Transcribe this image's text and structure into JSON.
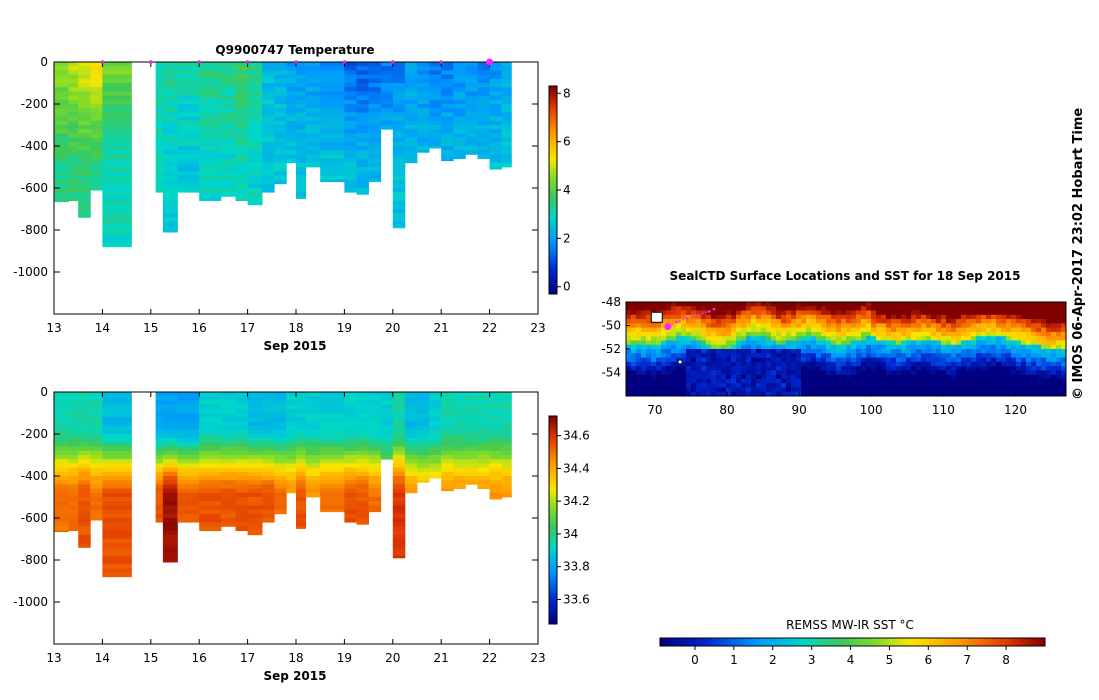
{
  "chart_data": [
    {
      "type": "heatmap",
      "title": "Q9900747  Temperature",
      "xlabel": "Sep 2015",
      "ylabel": "",
      "xlim": [
        13,
        23
      ],
      "ylim": [
        -1200,
        0
      ],
      "xticks": [
        "13",
        "14",
        "15",
        "16",
        "17",
        "18",
        "19",
        "20",
        "21",
        "22",
        "23"
      ],
      "yticks": [
        "0",
        "-200",
        "-400",
        "-600",
        "-800",
        "-1000"
      ],
      "yticks_values": [
        0,
        -200,
        -400,
        -600,
        -800,
        -1000
      ],
      "colorbar": {
        "ticks": [
          "0",
          "2",
          "4",
          "6",
          "8"
        ],
        "tick_values": [
          0,
          2,
          4,
          6,
          8
        ],
        "range": [
          -0.3,
          8.3
        ]
      },
      "surface_markers_day": [
        14,
        15,
        16,
        17,
        18,
        19,
        20,
        21,
        22
      ],
      "highlight_marker_day": 22,
      "profiles": [
        {
          "x0": 13.0,
          "x1": 13.3,
          "bottom": -665,
          "top_val": 4.6,
          "deep_val": 3.4
        },
        {
          "x0": 13.3,
          "x1": 13.5,
          "bottom": -660,
          "top_val": 5.0,
          "deep_val": 3.4
        },
        {
          "x0": 13.5,
          "x1": 13.75,
          "bottom": -740,
          "top_val": 5.2,
          "deep_val": 3.5
        },
        {
          "x0": 13.75,
          "x1": 14.0,
          "bottom": -610,
          "top_val": 5.4,
          "deep_val": 3.4
        },
        {
          "x0": 14.0,
          "x1": 14.6,
          "bottom": -880,
          "top_val": 4.4,
          "deep_val": 3.0
        },
        {
          "x0": 15.1,
          "x1": 15.25,
          "bottom": -620,
          "top_val": 3.2,
          "deep_val": 2.9
        },
        {
          "x0": 15.25,
          "x1": 15.55,
          "bottom": -810,
          "top_val": 3.3,
          "deep_val": 2.7
        },
        {
          "x0": 15.55,
          "x1": 16.0,
          "bottom": -620,
          "top_val": 3.1,
          "deep_val": 2.6
        },
        {
          "x0": 16.0,
          "x1": 16.45,
          "bottom": -660,
          "top_val": 3.4,
          "deep_val": 2.9
        },
        {
          "x0": 16.45,
          "x1": 16.75,
          "bottom": -640,
          "top_val": 3.3,
          "deep_val": 2.9
        },
        {
          "x0": 16.75,
          "x1": 17.0,
          "bottom": -660,
          "top_val": 3.7,
          "deep_val": 3.0
        },
        {
          "x0": 17.0,
          "x1": 17.3,
          "bottom": -680,
          "top_val": 3.4,
          "deep_val": 2.8
        },
        {
          "x0": 17.3,
          "x1": 17.55,
          "bottom": -620,
          "top_val": 2.4,
          "deep_val": 2.7
        },
        {
          "x0": 17.55,
          "x1": 17.8,
          "bottom": -580,
          "top_val": 2.2,
          "deep_val": 2.7
        },
        {
          "x0": 17.8,
          "x1": 18.0,
          "bottom": -480,
          "top_val": 2.0,
          "deep_val": 2.6
        },
        {
          "x0": 18.0,
          "x1": 18.2,
          "bottom": -650,
          "top_val": 2.0,
          "deep_val": 2.5
        },
        {
          "x0": 18.2,
          "x1": 18.5,
          "bottom": -500,
          "top_val": 1.9,
          "deep_val": 2.5
        },
        {
          "x0": 18.5,
          "x1": 19.0,
          "bottom": -570,
          "top_val": 1.7,
          "deep_val": 2.5
        },
        {
          "x0": 19.0,
          "x1": 19.25,
          "bottom": -620,
          "top_val": 1.3,
          "deep_val": 2.4
        },
        {
          "x0": 19.25,
          "x1": 19.5,
          "bottom": -630,
          "top_val": 1.2,
          "deep_val": 2.4
        },
        {
          "x0": 19.5,
          "x1": 19.75,
          "bottom": -570,
          "top_val": 1.3,
          "deep_val": 2.4
        },
        {
          "x0": 19.75,
          "x1": 20.0,
          "bottom": -320,
          "top_val": 1.5,
          "deep_val": 2.4
        },
        {
          "x0": 20.0,
          "x1": 20.25,
          "bottom": -790,
          "top_val": 1.6,
          "deep_val": 2.5
        },
        {
          "x0": 20.25,
          "x1": 20.5,
          "bottom": -480,
          "top_val": 1.9,
          "deep_val": 2.5
        },
        {
          "x0": 20.5,
          "x1": 20.75,
          "bottom": -430,
          "top_val": 1.7,
          "deep_val": 2.5
        },
        {
          "x0": 20.75,
          "x1": 21.0,
          "bottom": -410,
          "top_val": 1.5,
          "deep_val": 2.5
        },
        {
          "x0": 21.0,
          "x1": 21.25,
          "bottom": -470,
          "top_val": 1.6,
          "deep_val": 2.5
        },
        {
          "x0": 21.25,
          "x1": 21.5,
          "bottom": -460,
          "top_val": 1.7,
          "deep_val": 2.5
        },
        {
          "x0": 21.5,
          "x1": 21.75,
          "bottom": -440,
          "top_val": 1.8,
          "deep_val": 2.5
        },
        {
          "x0": 21.75,
          "x1": 22.0,
          "bottom": -460,
          "top_val": 1.6,
          "deep_val": 2.5
        },
        {
          "x0": 22.0,
          "x1": 22.25,
          "bottom": -510,
          "top_val": 1.9,
          "deep_val": 2.5
        },
        {
          "x0": 22.25,
          "x1": 22.45,
          "bottom": -500,
          "top_val": 2.1,
          "deep_val": 2.6
        }
      ]
    },
    {
      "type": "heatmap",
      "title": "",
      "xlabel": "Sep 2015",
      "ylabel": "",
      "xlim": [
        13,
        23
      ],
      "ylim": [
        -1200,
        0
      ],
      "xticks": [
        "13",
        "14",
        "15",
        "16",
        "17",
        "18",
        "19",
        "20",
        "21",
        "22",
        "23"
      ],
      "yticks": [
        "0",
        "-200",
        "-400",
        "-600",
        "-800",
        "-1000"
      ],
      "yticks_values": [
        0,
        -200,
        -400,
        -600,
        -800,
        -1000
      ],
      "colorbar": {
        "ticks": [
          "33.6",
          "33.8",
          "34",
          "34.2",
          "34.4",
          "34.6"
        ],
        "tick_values": [
          33.6,
          33.8,
          34.0,
          34.2,
          34.4,
          34.6
        ],
        "range": [
          33.45,
          34.72
        ]
      },
      "profiles": [
        {
          "x0": 13.0,
          "x1": 13.3,
          "bottom": -665,
          "surf": 33.95,
          "deep": 34.5
        },
        {
          "x0": 13.3,
          "x1": 13.5,
          "bottom": -660,
          "surf": 33.95,
          "deep": 34.5
        },
        {
          "x0": 13.5,
          "x1": 13.75,
          "bottom": -740,
          "surf": 33.95,
          "deep": 34.55
        },
        {
          "x0": 13.75,
          "x1": 14.0,
          "bottom": -610,
          "surf": 33.95,
          "deep": 34.5
        },
        {
          "x0": 14.0,
          "x1": 14.6,
          "bottom": -880,
          "surf": 33.85,
          "deep": 34.55
        },
        {
          "x0": 15.1,
          "x1": 15.25,
          "bottom": -620,
          "surf": 33.8,
          "deep": 34.55
        },
        {
          "x0": 15.25,
          "x1": 15.55,
          "bottom": -810,
          "surf": 33.8,
          "deep": 34.68
        },
        {
          "x0": 15.55,
          "x1": 16.0,
          "bottom": -620,
          "surf": 33.8,
          "deep": 34.55
        },
        {
          "x0": 16.0,
          "x1": 16.45,
          "bottom": -660,
          "surf": 33.9,
          "deep": 34.55
        },
        {
          "x0": 16.45,
          "x1": 16.75,
          "bottom": -640,
          "surf": 33.9,
          "deep": 34.55
        },
        {
          "x0": 16.75,
          "x1": 17.0,
          "bottom": -660,
          "surf": 33.9,
          "deep": 34.55
        },
        {
          "x0": 17.0,
          "x1": 17.3,
          "bottom": -680,
          "surf": 33.85,
          "deep": 34.55
        },
        {
          "x0": 17.3,
          "x1": 17.55,
          "bottom": -620,
          "surf": 33.85,
          "deep": 34.55
        },
        {
          "x0": 17.55,
          "x1": 17.8,
          "bottom": -580,
          "surf": 33.85,
          "deep": 34.5
        },
        {
          "x0": 17.8,
          "x1": 18.0,
          "bottom": -480,
          "surf": 33.9,
          "deep": 34.45
        },
        {
          "x0": 18.0,
          "x1": 18.2,
          "bottom": -650,
          "surf": 33.9,
          "deep": 34.55
        },
        {
          "x0": 18.2,
          "x1": 18.5,
          "bottom": -500,
          "surf": 33.9,
          "deep": 34.45
        },
        {
          "x0": 18.5,
          "x1": 19.0,
          "bottom": -570,
          "surf": 33.9,
          "deep": 34.5
        },
        {
          "x0": 19.0,
          "x1": 19.25,
          "bottom": -620,
          "surf": 33.9,
          "deep": 34.55
        },
        {
          "x0": 19.25,
          "x1": 19.5,
          "bottom": -630,
          "surf": 33.9,
          "deep": 34.55
        },
        {
          "x0": 19.5,
          "x1": 19.75,
          "bottom": -570,
          "surf": 33.9,
          "deep": 34.5
        },
        {
          "x0": 19.75,
          "x1": 20.0,
          "bottom": -320,
          "surf": 33.9,
          "deep": 34.3
        },
        {
          "x0": 20.0,
          "x1": 20.25,
          "bottom": -790,
          "surf": 33.95,
          "deep": 34.6
        },
        {
          "x0": 20.25,
          "x1": 20.5,
          "bottom": -480,
          "surf": 33.85,
          "deep": 34.45
        },
        {
          "x0": 20.5,
          "x1": 20.75,
          "bottom": -430,
          "surf": 33.85,
          "deep": 34.4
        },
        {
          "x0": 20.75,
          "x1": 21.0,
          "bottom": -410,
          "surf": 33.9,
          "deep": 34.4
        },
        {
          "x0": 21.0,
          "x1": 21.25,
          "bottom": -470,
          "surf": 33.95,
          "deep": 34.45
        },
        {
          "x0": 21.25,
          "x1": 21.5,
          "bottom": -460,
          "surf": 33.95,
          "deep": 34.45
        },
        {
          "x0": 21.5,
          "x1": 21.75,
          "bottom": -440,
          "surf": 33.95,
          "deep": 34.45
        },
        {
          "x0": 21.75,
          "x1": 22.0,
          "bottom": -460,
          "surf": 33.95,
          "deep": 34.45
        },
        {
          "x0": 22.0,
          "x1": 22.25,
          "bottom": -510,
          "surf": 33.95,
          "deep": 34.45
        },
        {
          "x0": 22.25,
          "x1": 22.45,
          "bottom": -500,
          "surf": 33.95,
          "deep": 34.45
        }
      ]
    },
    {
      "type": "heatmap",
      "title": "SealCTD Surface Locations and SST for 18 Sep 2015",
      "xlabel": "",
      "ylabel": "",
      "xlim": [
        66,
        127
      ],
      "ylim": [
        -56,
        -48
      ],
      "xticks": [
        "70",
        "80",
        "90",
        "100",
        "110",
        "120"
      ],
      "xticks_values": [
        70,
        80,
        90,
        100,
        110,
        120
      ],
      "yticks": [
        "-48",
        "-50",
        "-52",
        "-54"
      ],
      "yticks_values": [
        -48,
        -50,
        -52,
        -54
      ],
      "colorbar": {
        "label": "REMSS MW-IR SST °C",
        "ticks": [
          "0",
          "1",
          "2",
          "3",
          "4",
          "5",
          "6",
          "7",
          "8"
        ],
        "tick_values": [
          0,
          1,
          2,
          3,
          4,
          5,
          6,
          7,
          8
        ],
        "range": [
          -0.9,
          9.0
        ]
      },
      "front_latitude": [
        -51.6,
        -51.5,
        -51.7,
        -51.2,
        -51.0,
        -51.2,
        -51.8,
        -52.0,
        -51.3,
        -50.8,
        -51.1,
        -51.6,
        -51.2,
        -50.9,
        -51.3,
        -51.7,
        -51.4,
        -51.0,
        -51.2,
        -51.5,
        -51.3,
        -51.1,
        -51.4,
        -51.6,
        -51.3,
        -51.0,
        -50.9,
        -51.2,
        -51.5,
        -51.8,
        -52.0,
        -51.9
      ],
      "island_lon": 70.2,
      "island_lat": -49.3,
      "seal_track": [
        [
          71.8,
          -50.1
        ],
        [
          73.0,
          -49.7
        ],
        [
          74.5,
          -49.4
        ],
        [
          76.0,
          -49.1
        ],
        [
          77.5,
          -48.8
        ],
        [
          78.2,
          -48.6
        ]
      ],
      "seal_current": [
        71.8,
        -50.1
      ]
    }
  ],
  "watermark": "© IMOS 06-Apr-2017 23:02 Hobart Time",
  "colors": {
    "track": "#ff22ff",
    "marker": "#cc33cc"
  }
}
